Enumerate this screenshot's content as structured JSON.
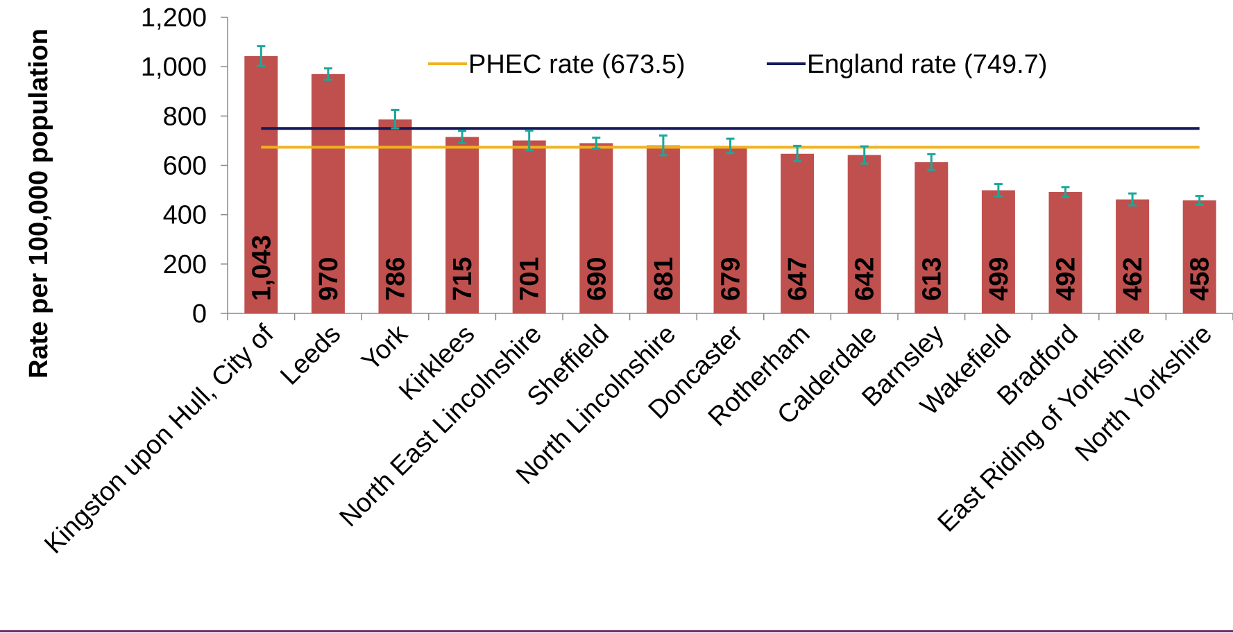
{
  "chart_data": {
    "type": "bar",
    "title": "",
    "xlabel": "",
    "ylabel": "Rate per 100,000 population",
    "ylim": [
      0,
      1200
    ],
    "yticks": [
      0,
      200,
      400,
      600,
      800,
      1000,
      1200
    ],
    "ytick_labels": [
      "0",
      "200",
      "400",
      "600",
      "800",
      "1,000",
      "1,200"
    ],
    "categories": [
      "Kingston upon Hull, City of",
      "Leeds",
      "York",
      "Kirklees",
      "North East Lincolnshire",
      "Sheffield",
      "North Lincolnshire",
      "Doncaster",
      "Rotherham",
      "Calderdale",
      "Barnsley",
      "Wakefield",
      "Bradford",
      "East Riding of Yorkshire",
      "North Yorkshire"
    ],
    "values": [
      1043,
      970,
      786,
      715,
      701,
      690,
      681,
      679,
      647,
      642,
      613,
      499,
      492,
      462,
      458
    ],
    "value_labels": [
      "1,043",
      "970",
      "786",
      "715",
      "701",
      "690",
      "681",
      "679",
      "647",
      "642",
      "613",
      "499",
      "492",
      "462",
      "458"
    ],
    "error_bars": [
      [
        1003,
        1083
      ],
      [
        947,
        993
      ],
      [
        750,
        825
      ],
      [
        690,
        740
      ],
      [
        661,
        741
      ],
      [
        668,
        712
      ],
      [
        641,
        721
      ],
      [
        650,
        708
      ],
      [
        617,
        679
      ],
      [
        607,
        677
      ],
      [
        581,
        645
      ],
      [
        474,
        524
      ],
      [
        472,
        512
      ],
      [
        438,
        486
      ],
      [
        440,
        476
      ]
    ],
    "reference_lines": [
      {
        "name": "PHEC rate (673.5)",
        "value": 673.5,
        "color": "#f0b21e"
      },
      {
        "name": "England rate (749.7)",
        "value": 749.7,
        "color": "#14195a"
      }
    ],
    "colors": {
      "bar": "#c0504d",
      "error_bar": "#1aa89a"
    },
    "grid": false,
    "legend_position": "top"
  }
}
